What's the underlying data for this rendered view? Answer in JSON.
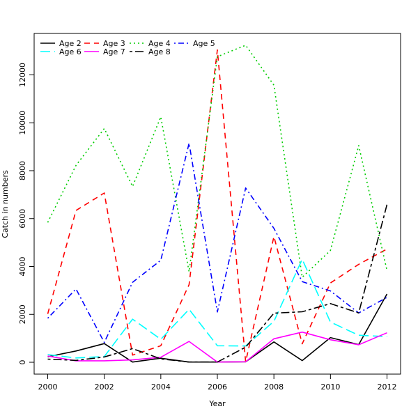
{
  "chart_data": {
    "type": "line",
    "xlabel": "Year",
    "ylabel": "Catch in numbers",
    "xlim": [
      2000,
      2012
    ],
    "ylim": [
      -500,
      13300
    ],
    "xticks": [
      2000,
      2002,
      2004,
      2006,
      2008,
      2010,
      2012
    ],
    "yticks": [
      0,
      2000,
      4000,
      6000,
      8000,
      10000,
      12000
    ],
    "legend_position": "top-left",
    "x": [
      2000,
      2001,
      2002,
      2003,
      2004,
      2005,
      2006,
      2007,
      2008,
      2009,
      2010,
      2011,
      2012
    ],
    "series": [
      {
        "name": "Age 2",
        "color": "#000000",
        "dash": "solid",
        "values": [
          230,
          470,
          780,
          10,
          170,
          10,
          10,
          20,
          850,
          70,
          1030,
          740,
          2850
        ]
      },
      {
        "name": "Age 3",
        "color": "#ff0000",
        "dash": "dashed",
        "values": [
          2020,
          6340,
          7070,
          300,
          690,
          3240,
          13040,
          20,
          5250,
          770,
          3310,
          4090,
          4730
        ]
      },
      {
        "name": "Age 4",
        "color": "#00cd00",
        "dash": "dotted",
        "values": [
          5840,
          8220,
          9760,
          7340,
          10250,
          3780,
          12760,
          13240,
          11570,
          3550,
          4670,
          9050,
          3830
        ]
      },
      {
        "name": "Age 5",
        "color": "#0000ff",
        "dash": "dotdash",
        "values": [
          1840,
          3060,
          830,
          3340,
          4260,
          9150,
          2100,
          7280,
          5590,
          3370,
          2980,
          2060,
          2710
        ]
      },
      {
        "name": "Age 6",
        "color": "#00ffff",
        "dash": "longdash",
        "values": [
          320,
          180,
          240,
          1800,
          960,
          2210,
          690,
          680,
          1710,
          4300,
          1680,
          1130,
          1070
        ]
      },
      {
        "name": "Age 7",
        "color": "#ff00ff",
        "dash": "solid",
        "values": [
          260,
          60,
          60,
          100,
          210,
          870,
          10,
          20,
          980,
          1260,
          940,
          730,
          1230
        ]
      },
      {
        "name": "Age 8",
        "color": "#000000",
        "dash": "twodash",
        "values": [
          130,
          80,
          220,
          570,
          140,
          10,
          10,
          630,
          2050,
          2110,
          2450,
          2060,
          6590
        ]
      }
    ]
  }
}
